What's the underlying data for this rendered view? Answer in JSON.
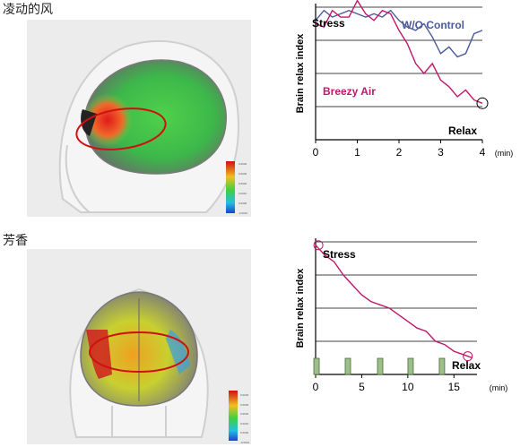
{
  "sections": [
    {
      "label": "凌动的风"
    },
    {
      "label": "芳香"
    }
  ],
  "scalebar": {
    "top": {
      "ticks": [
        "0.0040",
        "0.0030",
        "0.0020",
        "0.0010",
        "0.0000",
        "-0.0010"
      ]
    },
    "bottom": {
      "ticks": [
        "0.0040",
        "0.0030",
        "0.0020",
        "0.0010",
        "0.0000",
        "-0.0010"
      ]
    }
  },
  "chart_data": [
    {
      "type": "line",
      "ylabel": "Brain relax index",
      "xunit": "(min)",
      "x_ticks": [
        "0",
        "1",
        "2",
        "3",
        "4"
      ],
      "xlim": [
        0,
        4
      ],
      "ylim": [
        0,
        4
      ],
      "grid": true,
      "annotations": [
        "Stress",
        "Relax"
      ],
      "series": [
        {
          "name": "W/O Control",
          "color": "#4a5a9a",
          "x": [
            0.0,
            0.2,
            0.4,
            0.6,
            0.8,
            1.0,
            1.2,
            1.4,
            1.6,
            1.8,
            2.0,
            2.2,
            2.4,
            2.6,
            2.8,
            3.0,
            3.2,
            3.4,
            3.6,
            3.8,
            4.0
          ],
          "y": [
            3.6,
            3.9,
            3.7,
            3.8,
            3.9,
            3.8,
            3.7,
            3.8,
            3.7,
            3.9,
            3.6,
            3.4,
            3.3,
            3.5,
            3.1,
            2.6,
            2.8,
            2.5,
            2.6,
            3.2,
            3.3
          ]
        },
        {
          "name": "Breezy Air",
          "color": "#c0186a",
          "x": [
            0.0,
            0.2,
            0.4,
            0.6,
            0.8,
            1.0,
            1.2,
            1.4,
            1.6,
            1.8,
            2.0,
            2.2,
            2.4,
            2.6,
            2.8,
            3.0,
            3.2,
            3.4,
            3.6,
            3.8,
            4.0
          ],
          "y": [
            3.5,
            3.4,
            3.9,
            3.7,
            3.7,
            4.2,
            3.8,
            3.6,
            3.9,
            3.8,
            3.3,
            2.9,
            2.3,
            2.0,
            2.3,
            1.8,
            1.6,
            1.3,
            1.5,
            1.2,
            1.1
          ]
        }
      ]
    },
    {
      "type": "line",
      "ylabel": "Brain relax index",
      "xunit": "(min)",
      "x_ticks": [
        "0",
        "5",
        "10",
        "15"
      ],
      "xlim": [
        0,
        17.5
      ],
      "ylim": [
        0,
        4
      ],
      "grid": true,
      "annotations": [
        "Stress",
        "Relax"
      ],
      "markers": [
        0.1,
        3.5,
        7.0,
        10.3,
        13.7
      ],
      "series": [
        {
          "name": "",
          "color": "#c0186a",
          "x": [
            0,
            1,
            2,
            3,
            4,
            5,
            6,
            7,
            8,
            9,
            10,
            11,
            12,
            13,
            14,
            15,
            16,
            17
          ],
          "y": [
            3.9,
            3.6,
            3.4,
            3.0,
            2.7,
            2.4,
            2.2,
            2.1,
            2.0,
            1.8,
            1.6,
            1.4,
            1.3,
            1.0,
            0.9,
            0.7,
            0.6,
            0.5
          ]
        }
      ]
    }
  ]
}
